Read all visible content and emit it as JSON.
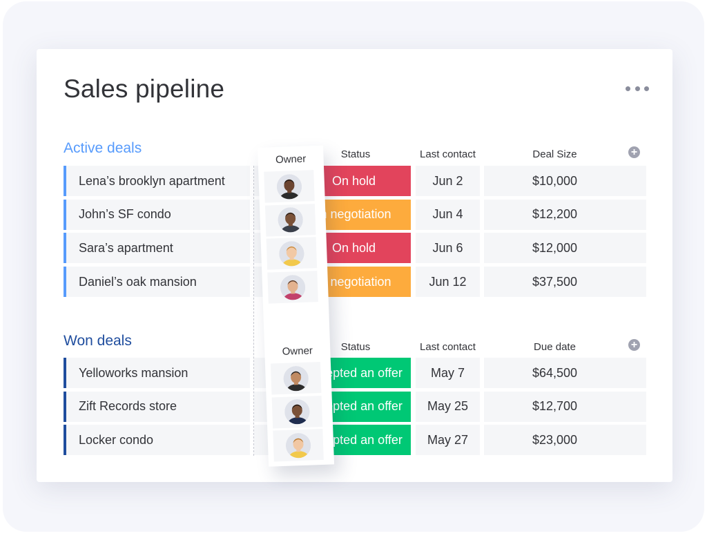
{
  "board": {
    "title": "Sales pipeline",
    "more_icon": "more-horizontal-icon"
  },
  "columns": {
    "owner": "Owner",
    "status": "Status",
    "last_contact": "Last contact",
    "deal_size": "Deal Size",
    "due_date": "Due date"
  },
  "colors": {
    "active_group": "#579bfc",
    "won_group": "#1f4d9e",
    "on_hold": "#e2445c",
    "negotiation": "#fdab3d",
    "accepted": "#00c875"
  },
  "groups": {
    "active": {
      "title": "Active deals",
      "rows": [
        {
          "name": "Lena’s brooklyn apartment",
          "status": "On hold",
          "status_color": "#e2445c",
          "date": "Jun 2",
          "amount": "$10,000",
          "avatar": {
            "skin": "#6b4430",
            "hair": "#1e1410",
            "shirt": "#2b2b2b"
          }
        },
        {
          "name": "John’s SF condo",
          "status": "In negotiation",
          "status_color": "#fdab3d",
          "date": "Jun 4",
          "amount": "$12,200",
          "avatar": {
            "skin": "#7a5138",
            "hair": "#2a1d15",
            "shirt": "#3a3f4a"
          }
        },
        {
          "name": "Sara’s apartment",
          "status": "On hold",
          "status_color": "#e2445c",
          "date": "Jun 6",
          "amount": "$12,000",
          "avatar": {
            "skin": "#f2c9a5",
            "hair": "#c98a3e",
            "shirt": "#f2c94c"
          }
        },
        {
          "name": "Daniel’s oak mansion",
          "status": "In negotiation",
          "status_color": "#fdab3d",
          "date": "Jun 12",
          "amount": "$37,500",
          "avatar": {
            "skin": "#e3b28e",
            "hair": "#5a3b28",
            "shirt": "#c2416b"
          }
        }
      ]
    },
    "won": {
      "title": "Won deals",
      "rows": [
        {
          "name": "Yelloworks mansion",
          "status": "Accepted an offer",
          "status_color": "#00c875",
          "date": "May 7",
          "amount": "$64,500",
          "avatar": {
            "skin": "#c08a62",
            "hair": "#242424",
            "shirt": "#2c2c2c"
          }
        },
        {
          "name": "Zift Records store",
          "status": "Accepted an offer",
          "status_color": "#00c875",
          "date": "May 25",
          "amount": "$12,700",
          "avatar": {
            "skin": "#7a5138",
            "hair": "#1e1410",
            "shirt": "#1f2d4f"
          }
        },
        {
          "name": "Locker condo",
          "status": "Accepted an offer",
          "status_color": "#00c875",
          "date": "May 27",
          "amount": "$23,000",
          "avatar": {
            "skin": "#f1c7a3",
            "hair": "#b9782f",
            "shirt": "#f2c94c"
          }
        }
      ]
    }
  }
}
